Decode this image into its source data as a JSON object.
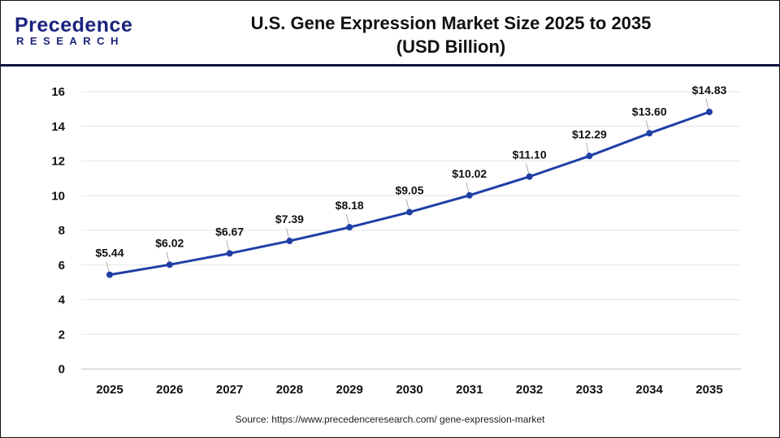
{
  "logo": {
    "line1": "Precedence",
    "line2": "RESEARCH"
  },
  "colors": {
    "line": "#1f3fa6",
    "header_divider": "#0d1240",
    "grid": "#e6e6e6"
  },
  "source": "Source: https://www.precedenceresearch.com/ gene-expression-market",
  "chart_data": {
    "type": "line",
    "title": "U.S. Gene Expression Market Size 2025 to 2035",
    "subtitle": "(USD Billion)",
    "categories": [
      "2025",
      "2026",
      "2027",
      "2028",
      "2029",
      "2030",
      "2031",
      "2032",
      "2033",
      "2034",
      "2035"
    ],
    "values": [
      5.44,
      6.02,
      6.67,
      7.39,
      8.18,
      9.05,
      10.02,
      11.1,
      12.29,
      13.6,
      14.83
    ],
    "data_labels": [
      "$5.44",
      "$6.02",
      "$6.67",
      "$7.39",
      "$8.18",
      "$9.05",
      "$10.02",
      "$11.10",
      "$12.29",
      "$13.60",
      "$14.83"
    ],
    "yticks": [
      0,
      2,
      4,
      6,
      8,
      10,
      12,
      14,
      16
    ],
    "ylim": [
      0,
      16
    ],
    "grid": "horizontal",
    "xlabel": "",
    "ylabel": ""
  }
}
